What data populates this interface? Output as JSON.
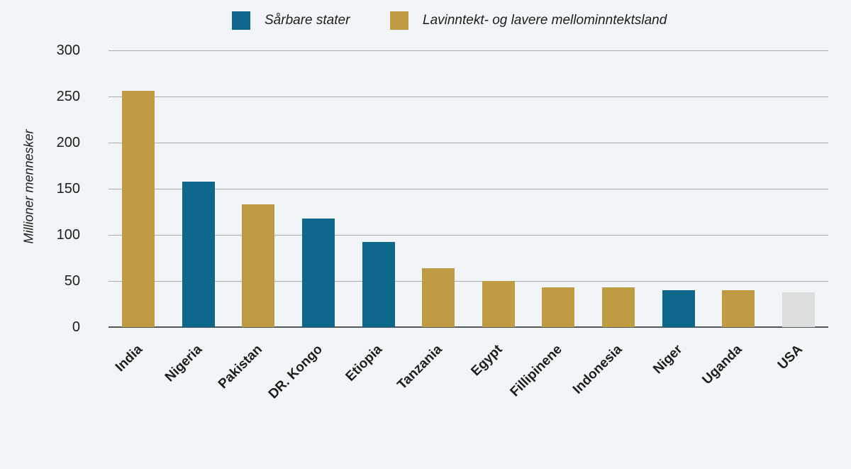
{
  "figure": {
    "background": "#f2f5f8"
  },
  "chart_data": {
    "type": "bar",
    "title": "",
    "xlabel": "",
    "ylabel": "Millioner mennesker",
    "ylim": [
      0,
      300
    ],
    "yticks": [
      0,
      50,
      100,
      150,
      200,
      250,
      300
    ],
    "grid": true,
    "legend_position": "top",
    "legend": [
      {
        "key": "sarbare",
        "label": "Sårbare stater",
        "color": "#0d688c"
      },
      {
        "key": "lavinntekt",
        "label": "Lavinntekt- og lavere mellominntektsland",
        "color": "#bf9b43"
      }
    ],
    "categories": [
      "India",
      "Nigeria",
      "Pakistan",
      "DR. Kongo",
      "Etiopia",
      "Tanzania",
      "Egypt",
      "Fillipinene",
      "Indonesia",
      "Niger",
      "Uganda",
      "USA"
    ],
    "values": [
      256,
      158,
      133,
      118,
      92,
      64,
      50,
      43,
      43,
      40,
      40,
      38
    ],
    "bar_groups": [
      "lavinntekt",
      "sarbare",
      "lavinntekt",
      "sarbare",
      "sarbare",
      "lavinntekt",
      "lavinntekt",
      "lavinntekt",
      "lavinntekt",
      "sarbare",
      "lavinntekt",
      "other"
    ],
    "colors": {
      "sarbare": "#0d688c",
      "lavinntekt": "#bf9b43",
      "other": "#dcdddd",
      "gridline": "#a6abb1",
      "axisline": "#53585c",
      "text": "#1d1d1b"
    }
  }
}
